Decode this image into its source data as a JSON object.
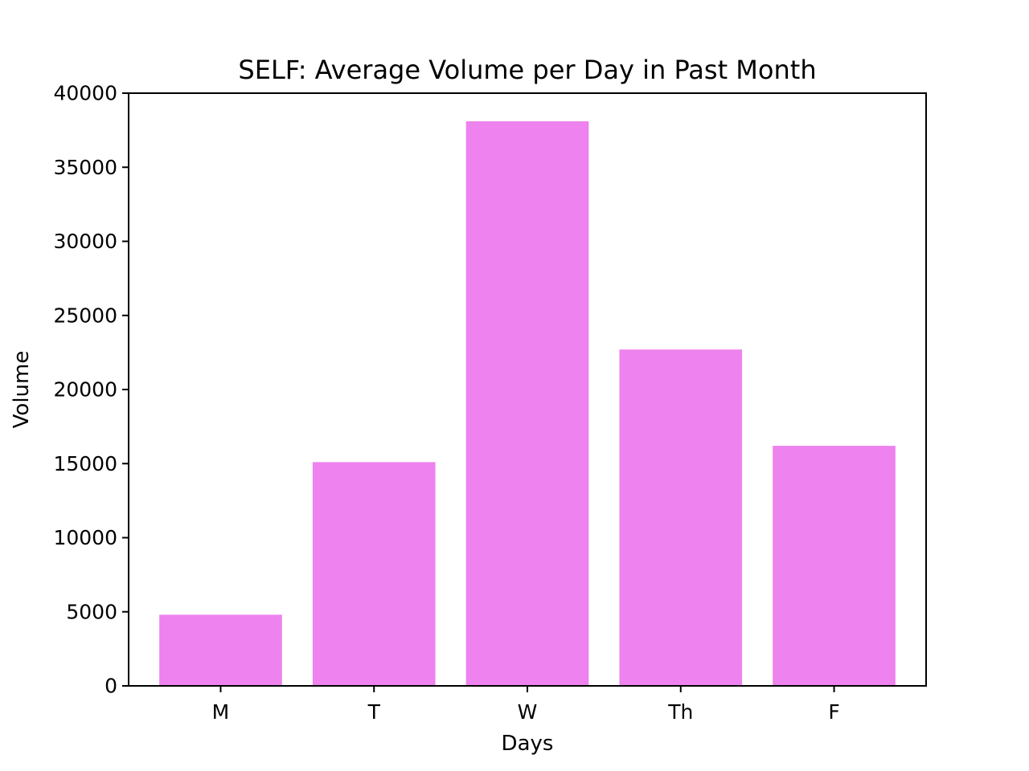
{
  "chart_data": {
    "type": "bar",
    "title": "SELF: Average Volume per Day in Past Month",
    "xlabel": "Days",
    "ylabel": "Volume",
    "categories": [
      "M",
      "T",
      "W",
      "Th",
      "F"
    ],
    "values": [
      4800,
      15100,
      38100,
      22700,
      16200
    ],
    "ylim": [
      0,
      40000
    ],
    "yticks": [
      0,
      5000,
      10000,
      15000,
      20000,
      25000,
      30000,
      35000,
      40000
    ],
    "bar_color": "#ee82ee",
    "grid": false,
    "legend": "none"
  }
}
